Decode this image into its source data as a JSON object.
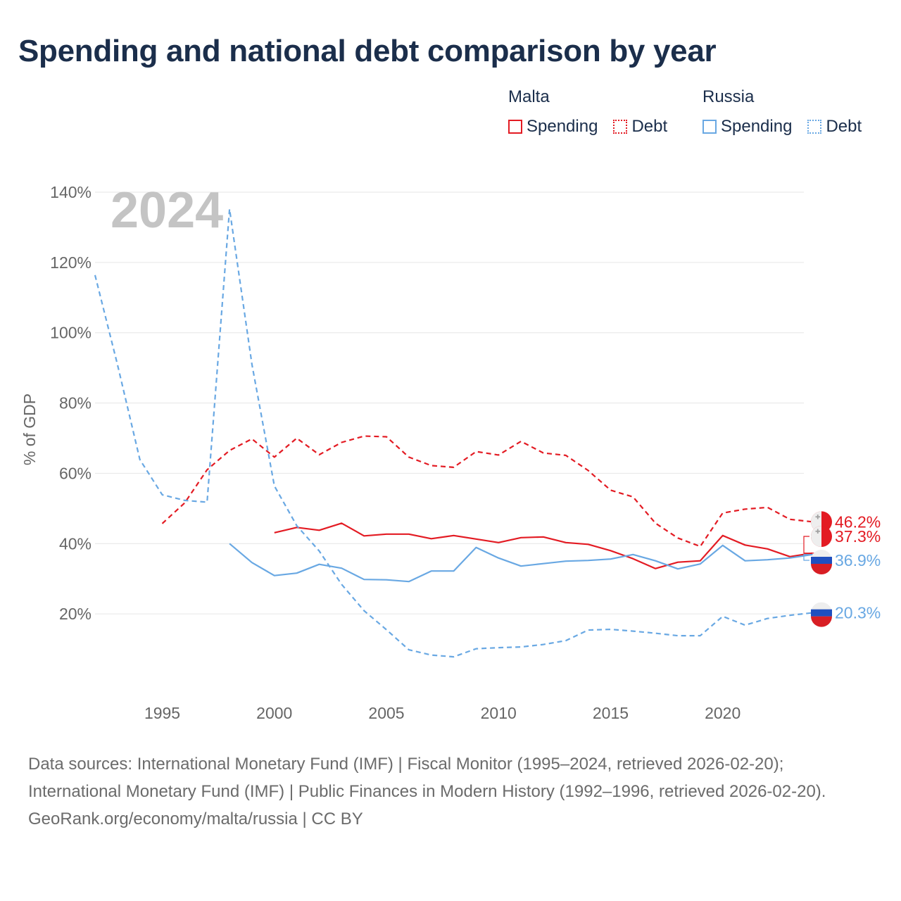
{
  "title": "Spending and national debt comparison by year",
  "legend": {
    "groups": [
      {
        "name": "Malta",
        "color": "#e31b23",
        "items": [
          {
            "label": "Spending",
            "style": "solid"
          },
          {
            "label": "Debt",
            "style": "dotted"
          }
        ]
      },
      {
        "name": "Russia",
        "color": "#69a8e3",
        "items": [
          {
            "label": "Spending",
            "style": "solid"
          },
          {
            "label": "Debt",
            "style": "dotted"
          }
        ]
      }
    ]
  },
  "chart_data": {
    "type": "line",
    "title": "Spending and national debt comparison by year",
    "year_watermark": "2024",
    "ylabel": "% of GDP",
    "xlabel": "",
    "ylim": [
      0,
      145
    ],
    "xlim": [
      1992,
      2024.5
    ],
    "y_ticks": [
      20,
      40,
      60,
      80,
      100,
      120,
      140
    ],
    "y_tick_labels": [
      "20%",
      "40%",
      "60%",
      "80%",
      "100%",
      "120%",
      "140%"
    ],
    "x_ticks": [
      1995,
      2000,
      2005,
      2010,
      2015,
      2020
    ],
    "x_tick_labels": [
      "1995",
      "2000",
      "2005",
      "2010",
      "2015",
      "2020"
    ],
    "grid": true,
    "series": [
      {
        "name": "Malta Debt",
        "country": "Malta",
        "metric": "Debt",
        "color": "#e31b23",
        "dash": "dashed",
        "x": [
          1995,
          1996,
          1997,
          1998,
          1999,
          2000,
          2001,
          2002,
          2003,
          2004,
          2005,
          2006,
          2007,
          2008,
          2009,
          2010,
          2011,
          2012,
          2013,
          2014,
          2015,
          2016,
          2017,
          2018,
          2019,
          2020,
          2021,
          2022,
          2023,
          2024
        ],
        "values": [
          45.7,
          51.6,
          61.0,
          66.5,
          69.8,
          64.6,
          70.0,
          65.3,
          68.8,
          70.6,
          70.4,
          64.6,
          62.2,
          61.7,
          66.2,
          65.2,
          69.1,
          65.8,
          65.1,
          60.8,
          55.2,
          53.3,
          45.8,
          41.6,
          39.2,
          48.7,
          49.8,
          50.3,
          46.9,
          46.2
        ],
        "end_label": "46.2%"
      },
      {
        "name": "Malta Spending",
        "country": "Malta",
        "metric": "Spending",
        "color": "#e31b23",
        "dash": "solid",
        "x": [
          2000,
          2001,
          2002,
          2003,
          2004,
          2005,
          2006,
          2007,
          2008,
          2009,
          2010,
          2011,
          2012,
          2013,
          2014,
          2015,
          2016,
          2017,
          2018,
          2019,
          2020,
          2021,
          2022,
          2023,
          2024
        ],
        "values": [
          43.1,
          44.6,
          43.8,
          45.8,
          42.2,
          42.7,
          42.7,
          41.4,
          42.3,
          41.3,
          40.3,
          41.7,
          41.9,
          40.3,
          39.8,
          38.0,
          35.7,
          32.9,
          34.7,
          35.1,
          42.3,
          39.6,
          38.5,
          36.3,
          37.3
        ],
        "end_label": "37.3%"
      },
      {
        "name": "Russia Spending",
        "country": "Russia",
        "metric": "Spending",
        "color": "#69a8e3",
        "dash": "solid",
        "x": [
          1998,
          1999,
          2000,
          2001,
          2002,
          2003,
          2004,
          2005,
          2006,
          2007,
          2008,
          2009,
          2010,
          2011,
          2012,
          2013,
          2014,
          2015,
          2016,
          2017,
          2018,
          2019,
          2020,
          2021,
          2022,
          2023,
          2024
        ],
        "values": [
          40.0,
          34.6,
          30.9,
          31.6,
          34.1,
          33.0,
          29.8,
          29.7,
          29.2,
          32.2,
          32.2,
          38.9,
          35.9,
          33.6,
          34.3,
          35.0,
          35.2,
          35.6,
          36.9,
          35.1,
          32.8,
          34.2,
          39.5,
          35.1,
          35.4,
          35.9,
          36.9
        ],
        "end_label": "36.9%"
      },
      {
        "name": "Russia Debt",
        "country": "Russia",
        "metric": "Debt",
        "color": "#69a8e3",
        "dash": "dashed",
        "x": [
          1992,
          1993,
          1994,
          1995,
          1996,
          1997,
          1998,
          1999,
          2000,
          2001,
          2002,
          2003,
          2004,
          2005,
          2006,
          2007,
          2008,
          2009,
          2010,
          2011,
          2012,
          2013,
          2014,
          2015,
          2016,
          2017,
          2018,
          2019,
          2020,
          2021,
          2022,
          2023,
          2024
        ],
        "values": [
          116.4,
          91.0,
          63.9,
          53.9,
          52.3,
          51.8,
          135.2,
          91.0,
          56.4,
          45.1,
          37.9,
          28.4,
          20.9,
          15.5,
          9.8,
          8.3,
          7.8,
          10.1,
          10.4,
          10.6,
          11.3,
          12.4,
          15.4,
          15.6,
          15.1,
          14.5,
          13.8,
          13.8,
          19.3,
          16.8,
          18.7,
          19.6,
          20.3
        ],
        "end_label": "20.3%"
      }
    ]
  },
  "footer": {
    "sources": "Data sources: International Monetary Fund (IMF) | Fiscal Monitor (1995–2024, retrieved 2026-02-20); International Monetary Fund (IMF) | Public Finances in Modern History (1992–1996, retrieved 2026-02-20).",
    "credit": "GeoRank.org/economy/malta/russia | CC BY"
  }
}
